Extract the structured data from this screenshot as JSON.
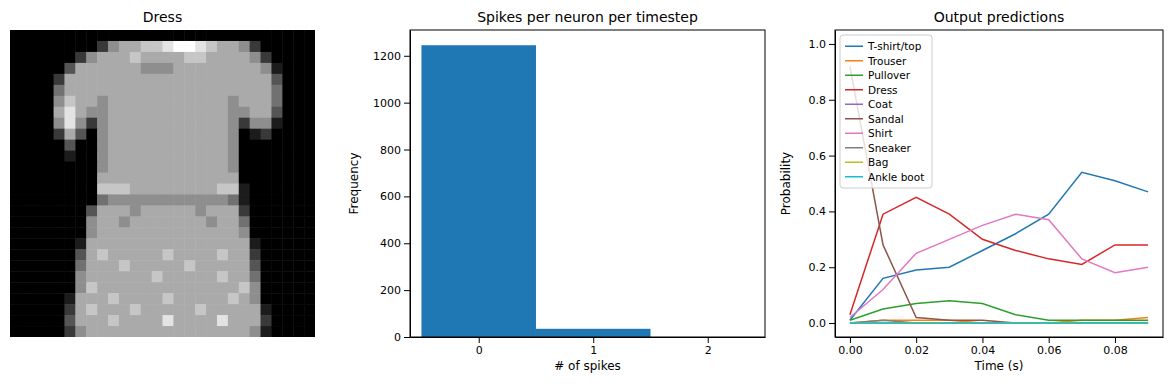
{
  "chart_data": [
    {
      "type": "heatmap",
      "title": "Dress",
      "zlim": [
        0,
        9
      ],
      "color": "#ffffff",
      "tick_labels": false,
      "cells": [
        [
          0,
          0,
          0,
          0,
          0,
          0,
          0,
          0,
          0,
          0,
          0,
          0,
          0,
          0,
          0,
          0,
          0,
          0,
          0,
          0,
          0,
          0,
          0,
          0,
          0,
          0,
          0,
          0
        ],
        [
          0,
          0,
          0,
          0,
          0,
          0,
          0,
          0,
          2,
          5,
          6,
          6,
          7,
          7,
          8,
          9,
          9,
          8,
          7,
          6,
          6,
          5,
          2,
          0,
          0,
          0,
          0,
          0
        ],
        [
          0,
          0,
          0,
          0,
          0,
          0,
          2,
          5,
          6,
          6,
          6,
          7,
          6,
          6,
          6,
          6,
          7,
          7,
          6,
          6,
          6,
          6,
          5,
          2,
          0,
          0,
          0,
          0
        ],
        [
          0,
          0,
          0,
          0,
          0,
          3,
          6,
          6,
          6,
          6,
          6,
          6,
          5,
          5,
          5,
          6,
          6,
          6,
          6,
          6,
          6,
          6,
          6,
          5,
          1,
          0,
          0,
          0
        ],
        [
          0,
          0,
          0,
          0,
          2,
          6,
          6,
          6,
          6,
          6,
          6,
          6,
          6,
          6,
          6,
          6,
          6,
          6,
          6,
          6,
          6,
          6,
          6,
          6,
          3,
          0,
          0,
          0
        ],
        [
          0,
          0,
          0,
          0,
          4,
          6,
          6,
          6,
          6,
          6,
          6,
          6,
          6,
          6,
          6,
          6,
          6,
          6,
          6,
          6,
          6,
          6,
          6,
          6,
          4,
          0,
          0,
          0
        ],
        [
          0,
          0,
          0,
          0,
          5,
          7,
          6,
          6,
          5,
          6,
          6,
          6,
          6,
          6,
          6,
          6,
          6,
          6,
          6,
          6,
          5,
          6,
          6,
          6,
          4,
          0,
          0,
          0
        ],
        [
          0,
          0,
          0,
          0,
          6,
          8,
          6,
          5,
          5,
          6,
          6,
          6,
          6,
          6,
          6,
          6,
          6,
          6,
          6,
          6,
          5,
          5,
          6,
          6,
          3,
          0,
          0,
          0
        ],
        [
          0,
          0,
          0,
          0,
          5,
          8,
          5,
          2,
          5,
          6,
          6,
          6,
          6,
          6,
          6,
          6,
          6,
          6,
          6,
          6,
          5,
          2,
          5,
          5,
          1,
          0,
          0,
          0
        ],
        [
          0,
          0,
          0,
          0,
          2,
          6,
          3,
          0,
          5,
          6,
          6,
          6,
          6,
          6,
          6,
          6,
          6,
          6,
          6,
          6,
          5,
          0,
          1,
          2,
          0,
          0,
          0,
          0
        ],
        [
          0,
          0,
          0,
          0,
          0,
          3,
          0,
          0,
          5,
          6,
          6,
          6,
          6,
          6,
          6,
          6,
          6,
          6,
          6,
          6,
          5,
          0,
          0,
          0,
          0,
          0,
          0,
          0
        ],
        [
          0,
          0,
          0,
          0,
          0,
          1,
          0,
          0,
          5,
          6,
          6,
          6,
          6,
          6,
          6,
          6,
          6,
          6,
          6,
          6,
          5,
          0,
          0,
          0,
          0,
          0,
          0,
          0
        ],
        [
          0,
          0,
          0,
          0,
          0,
          0,
          0,
          0,
          5,
          6,
          6,
          6,
          6,
          6,
          6,
          6,
          6,
          6,
          6,
          6,
          5,
          0,
          0,
          0,
          0,
          0,
          0,
          0
        ],
        [
          0,
          0,
          0,
          0,
          0,
          0,
          0,
          0,
          6,
          6,
          6,
          6,
          6,
          6,
          6,
          6,
          6,
          6,
          6,
          6,
          6,
          0,
          0,
          0,
          0,
          0,
          0,
          0
        ],
        [
          0,
          0,
          0,
          0,
          0,
          0,
          0,
          0,
          7,
          7,
          7,
          6,
          6,
          6,
          6,
          6,
          6,
          6,
          6,
          7,
          7,
          1,
          0,
          0,
          0,
          0,
          0,
          0
        ],
        [
          0,
          0,
          0,
          0,
          0,
          0,
          0,
          0,
          4,
          5,
          5,
          5,
          5,
          5,
          5,
          5,
          5,
          5,
          5,
          5,
          4,
          1,
          0,
          0,
          0,
          0,
          0,
          0
        ],
        [
          0,
          0,
          0,
          0,
          0,
          0,
          0,
          3,
          6,
          6,
          6,
          5,
          6,
          6,
          6,
          6,
          6,
          5,
          6,
          6,
          6,
          2,
          0,
          0,
          0,
          0,
          0,
          0
        ],
        [
          0,
          0,
          0,
          0,
          0,
          0,
          0,
          5,
          6,
          6,
          5,
          6,
          6,
          6,
          6,
          6,
          6,
          6,
          5,
          6,
          6,
          4,
          0,
          0,
          0,
          0,
          0,
          0
        ],
        [
          0,
          0,
          0,
          0,
          0,
          0,
          0,
          5,
          6,
          6,
          6,
          6,
          6,
          6,
          6,
          6,
          6,
          6,
          6,
          6,
          6,
          5,
          0,
          0,
          0,
          0,
          0,
          0
        ],
        [
          0,
          0,
          0,
          0,
          0,
          0,
          1,
          6,
          6,
          6,
          6,
          6,
          6,
          6,
          6,
          6,
          6,
          6,
          6,
          6,
          6,
          6,
          1,
          0,
          0,
          0,
          0,
          0
        ],
        [
          0,
          0,
          0,
          0,
          0,
          0,
          3,
          6,
          7,
          6,
          6,
          6,
          6,
          6,
          7,
          6,
          6,
          6,
          6,
          7,
          6,
          6,
          2,
          0,
          0,
          0,
          0,
          0
        ],
        [
          0,
          0,
          0,
          0,
          0,
          0,
          4,
          6,
          6,
          6,
          7,
          6,
          6,
          6,
          6,
          6,
          7,
          6,
          6,
          6,
          6,
          6,
          3,
          0,
          0,
          0,
          0,
          0
        ],
        [
          0,
          0,
          0,
          0,
          0,
          0,
          5,
          6,
          6,
          6,
          6,
          6,
          6,
          7,
          6,
          6,
          6,
          6,
          6,
          7,
          6,
          6,
          4,
          0,
          0,
          0,
          0,
          0
        ],
        [
          0,
          0,
          0,
          0,
          0,
          0,
          5,
          7,
          6,
          6,
          6,
          6,
          6,
          6,
          6,
          6,
          6,
          6,
          6,
          6,
          6,
          7,
          5,
          0,
          0,
          0,
          0,
          0
        ],
        [
          0,
          0,
          0,
          0,
          0,
          1,
          6,
          6,
          6,
          7,
          6,
          6,
          6,
          6,
          7,
          6,
          6,
          6,
          6,
          6,
          7,
          6,
          5,
          0,
          0,
          0,
          0,
          0
        ],
        [
          0,
          0,
          0,
          0,
          0,
          2,
          6,
          7,
          6,
          6,
          6,
          7,
          6,
          6,
          6,
          6,
          6,
          7,
          6,
          6,
          6,
          6,
          6,
          1,
          0,
          0,
          0,
          0
        ],
        [
          0,
          0,
          0,
          0,
          0,
          3,
          6,
          6,
          6,
          7,
          6,
          6,
          6,
          6,
          8,
          6,
          6,
          6,
          6,
          8,
          6,
          6,
          6,
          2,
          0,
          0,
          0,
          0
        ],
        [
          0,
          0,
          0,
          0,
          0,
          2,
          5,
          6,
          6,
          6,
          6,
          6,
          6,
          6,
          6,
          6,
          6,
          6,
          6,
          6,
          6,
          6,
          5,
          1,
          0,
          0,
          0,
          0
        ]
      ]
    },
    {
      "type": "histogram",
      "title": "Spikes per neuron per timestep",
      "x_label": "# of spikes",
      "y_label": "Frequency",
      "bins": [
        -0.5,
        0.5,
        1.5,
        2.5
      ],
      "values": [
        1245,
        35,
        0
      ],
      "color": "#1f77b4",
      "xlim": [
        -0.6,
        2.5
      ],
      "xticks": [
        0,
        1,
        2
      ],
      "ylim": [
        0,
        1310
      ],
      "yticks": [
        0,
        200,
        400,
        600,
        800,
        1000,
        1200
      ]
    },
    {
      "type": "line",
      "title": "Output predictions",
      "x_label": "Time (s)",
      "y_label": "Probability",
      "x": [
        0,
        0.01,
        0.02,
        0.03,
        0.04,
        0.05,
        0.06,
        0.07,
        0.08,
        0.09
      ],
      "series": [
        {
          "name": "T-shirt/top",
          "color": "#1f77b4",
          "values": [
            0.01,
            0.16,
            0.19,
            0.2,
            0.26,
            0.32,
            0.39,
            0.54,
            0.51,
            0.47
          ]
        },
        {
          "name": "Trouser",
          "color": "#ff7f0e",
          "values": [
            0,
            0.01,
            0.01,
            0.01,
            0,
            0,
            0,
            0.01,
            0.01,
            0.02
          ]
        },
        {
          "name": "Pullover",
          "color": "#2ca02c",
          "values": [
            0.01,
            0.05,
            0.07,
            0.08,
            0.07,
            0.03,
            0.01,
            0.01,
            0.01,
            0.01
          ]
        },
        {
          "name": "Dress",
          "color": "#d62728",
          "values": [
            0.03,
            0.39,
            0.45,
            0.39,
            0.3,
            0.26,
            0.23,
            0.21,
            0.28,
            0.28
          ]
        },
        {
          "name": "Coat",
          "color": "#9467bd",
          "values": [
            0,
            0,
            0,
            0,
            0,
            0,
            0,
            0,
            0,
            0
          ]
        },
        {
          "name": "Sandal",
          "color": "#8c564b",
          "values": [
            0.92,
            0.28,
            0.02,
            0.01,
            0.01,
            0,
            0,
            0,
            0,
            0
          ]
        },
        {
          "name": "Shirt",
          "color": "#e377c2",
          "values": [
            0.02,
            0.12,
            0.25,
            0.3,
            0.35,
            0.39,
            0.37,
            0.23,
            0.18,
            0.2
          ]
        },
        {
          "name": "Sneaker",
          "color": "#7f7f7f",
          "values": [
            0,
            0.01,
            0,
            0,
            0,
            0,
            0,
            0,
            0,
            0
          ]
        },
        {
          "name": "Bag",
          "color": "#bcbd22",
          "values": [
            0,
            0,
            0,
            0,
            0,
            0,
            0,
            0,
            0,
            0
          ]
        },
        {
          "name": "Ankle boot",
          "color": "#17becf",
          "values": [
            0,
            0,
            0,
            0,
            0,
            0,
            0,
            0,
            0,
            0
          ]
        }
      ],
      "xlim": [
        -0.0045,
        0.0945
      ],
      "xticks": [
        {
          "value": 0,
          "label": "0.00"
        },
        {
          "value": 0.02,
          "label": "0.02"
        },
        {
          "value": 0.04,
          "label": "0.04"
        },
        {
          "value": 0.06,
          "label": "0.06"
        },
        {
          "value": 0.08,
          "label": "0.08"
        }
      ],
      "ylim": [
        -0.05,
        1.05
      ],
      "yticks": [
        {
          "value": 0,
          "label": "0.0"
        },
        {
          "value": 0.2,
          "label": "0.2"
        },
        {
          "value": 0.4,
          "label": "0.4"
        },
        {
          "value": 0.6,
          "label": "0.6"
        },
        {
          "value": 0.8,
          "label": "0.8"
        },
        {
          "value": 1,
          "label": "1.0"
        }
      ],
      "legend": "upper left"
    }
  ]
}
